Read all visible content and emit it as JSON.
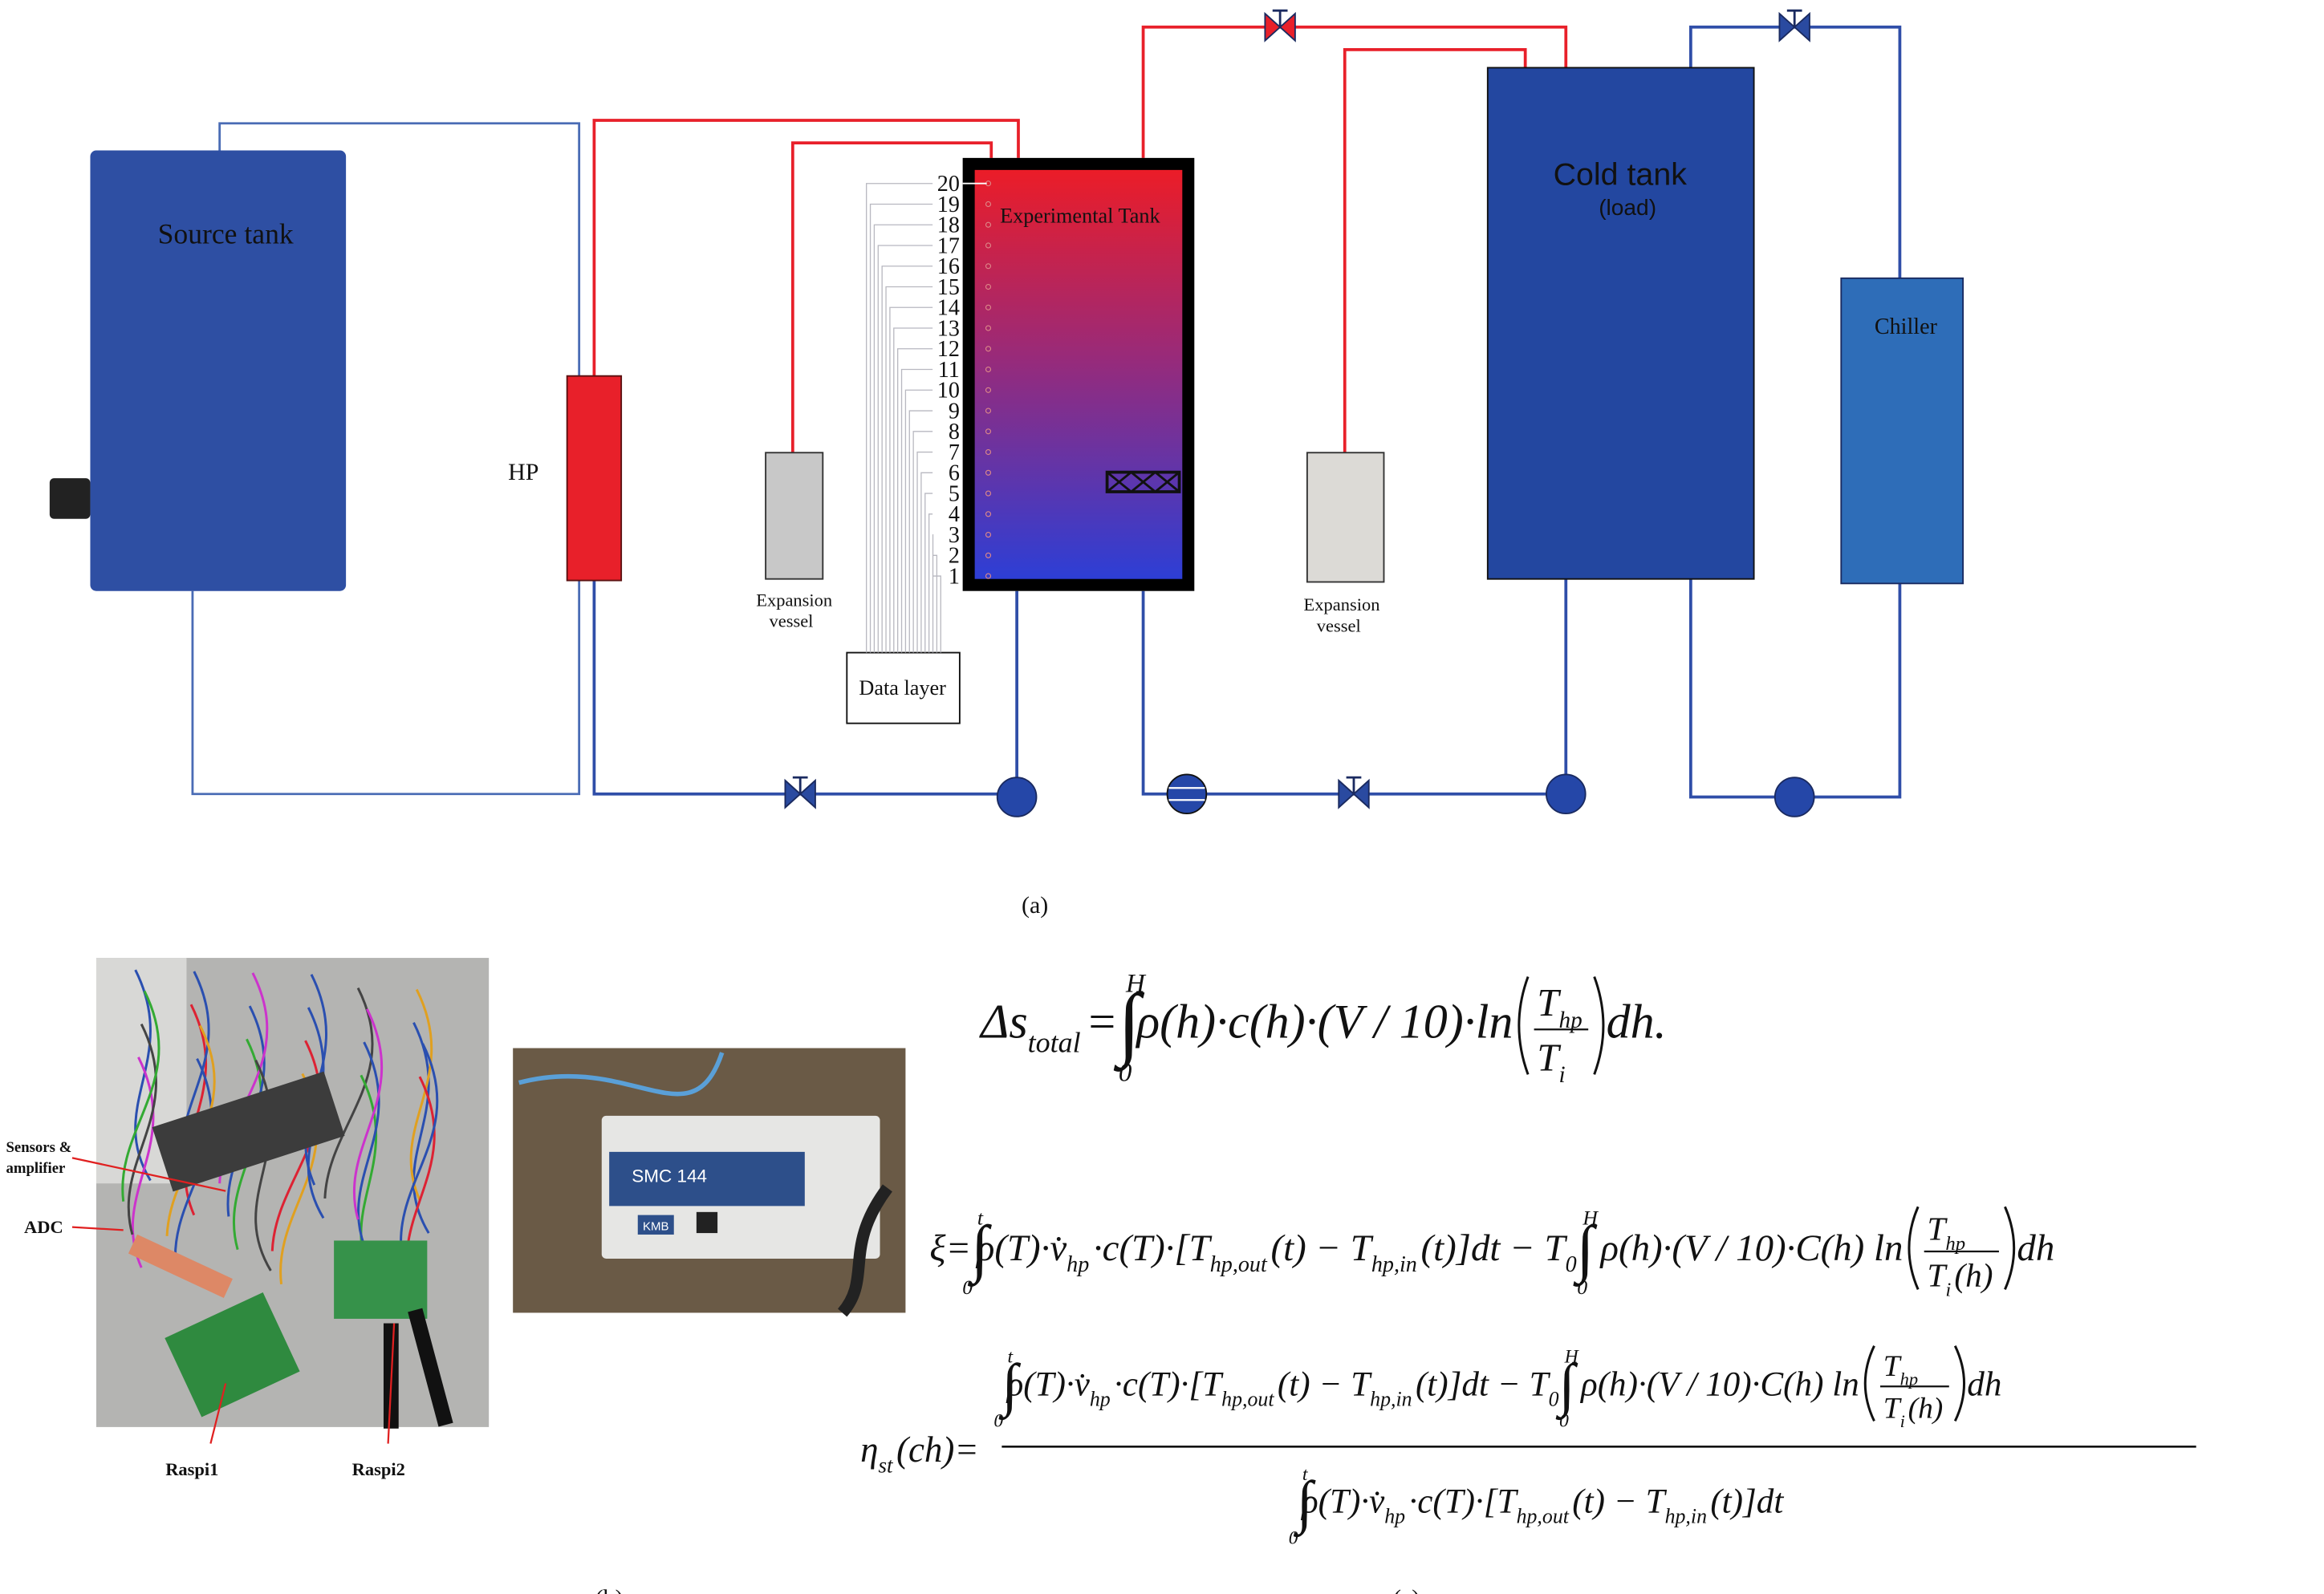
{
  "figure_a": {
    "source_tank": "Source tank",
    "hp": "HP",
    "expansion_vessel_1": [
      "Expansion",
      "vessel"
    ],
    "expansion_vessel_2": [
      "Expansion",
      "vessel"
    ],
    "experimental_tank": "Experimental Tank",
    "sensor_levels": [
      20,
      19,
      18,
      17,
      16,
      15,
      14,
      13,
      12,
      11,
      10,
      9,
      8,
      7,
      6,
      5,
      4,
      3,
      2,
      1
    ],
    "data_layer": "Data layer",
    "cold_tank": [
      "Cold tank",
      "(load)"
    ],
    "chiller": "Chiller",
    "caption": "(a)"
  },
  "figure_b": {
    "labels": {
      "sensors": [
        "Sensors &",
        "amplifier"
      ],
      "adc": "ADC",
      "raspi1": "Raspi1",
      "raspi2": "Raspi2"
    },
    "device": {
      "model": "SMC 144",
      "brand": "KMB"
    },
    "caption": "(b)"
  },
  "figure_c": {
    "equations": [
      {
        "parts": [
          "Δs",
          "total",
          "=",
          "∫",
          "H",
          "0",
          "ρ(h)·c(h)·(V / 10)·ln",
          "T",
          "hp",
          "T",
          "i",
          "dh."
        ]
      },
      {
        "parts": [
          "ξ",
          "=",
          "∫",
          "t",
          "0",
          "ρ(T)·",
          "v̇",
          "hp",
          "·c(T)·[T",
          "hp,out",
          "(t) − T",
          "hp,in",
          "(t)]dt − T",
          "0",
          "∫",
          "H",
          "0",
          " ρ(h)·(V / 10)·C(h) ln",
          "T",
          "hp",
          "T",
          "i",
          "(h)",
          "dh"
        ]
      },
      {
        "lhs": [
          "η",
          "st",
          "(ch)",
          "="
        ],
        "numerator": [
          "∫",
          "t",
          "0",
          "ρ(T)·",
          "v̇",
          "hp",
          "·c(T)·[T",
          "hp,out",
          "(t) − T",
          "hp,in",
          "(t)]dt − T",
          "0",
          "∫",
          "H",
          "0",
          " ρ(h)·(V / 10)·C(h) ln",
          "T",
          "hp",
          "T",
          "i",
          "(h)",
          "dh"
        ],
        "denominator": [
          "∫",
          "t",
          "0",
          "ρ(T)·",
          "v̇",
          "hp",
          "·c(T)·[T",
          "hp,out",
          "(t) − T",
          "hp,in",
          "(t)]dt"
        ]
      }
    ],
    "caption": "(c)"
  }
}
